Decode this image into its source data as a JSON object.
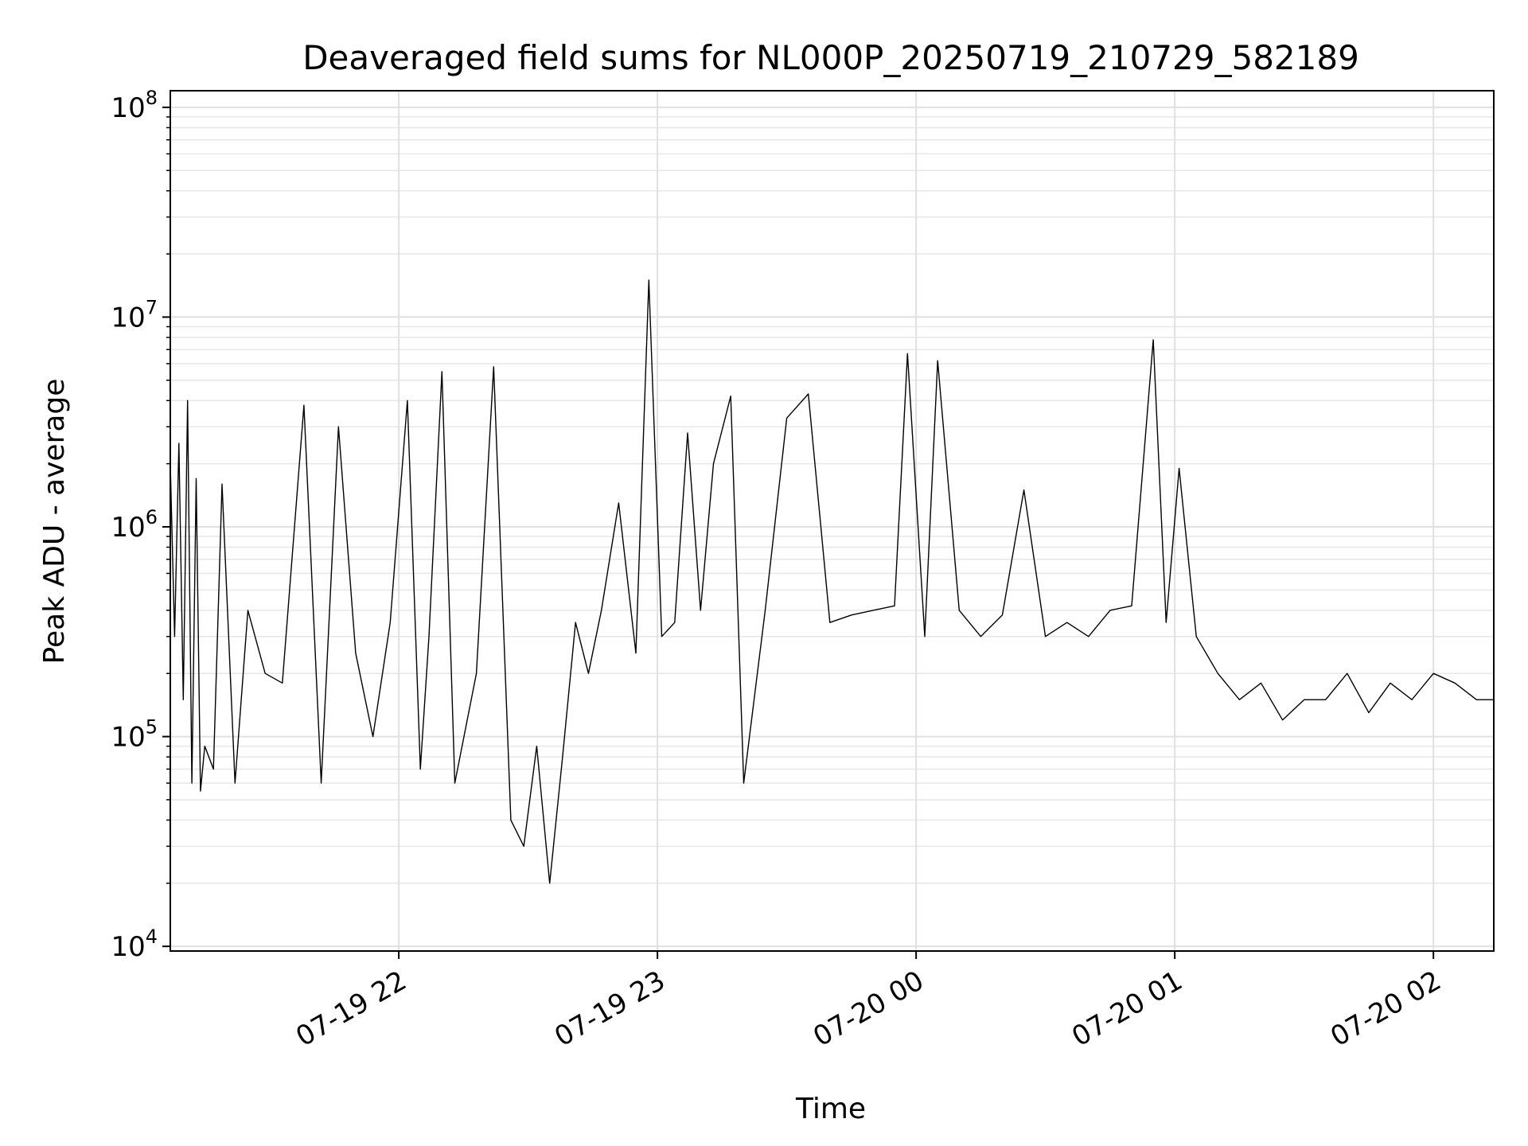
{
  "chart_data": {
    "type": "line",
    "title": "Deaveraged field sums for NL000P_20250719_210729_582189",
    "xlabel": "Time",
    "ylabel": "Peak ADU - average",
    "yscale": "log",
    "ylim": [
      9500,
      120000000
    ],
    "xlim": [
      "2025-07-19 21:07",
      "2025-07-20 02:14"
    ],
    "grid": true,
    "x_ticks": [
      {
        "at": "2025-07-19 22:00",
        "label": "07-19 22"
      },
      {
        "at": "2025-07-19 23:00",
        "label": "07-19 23"
      },
      {
        "at": "2025-07-20 00:00",
        "label": "07-20 00"
      },
      {
        "at": "2025-07-20 01:00",
        "label": "07-20 01"
      },
      {
        "at": "2025-07-20 02:00",
        "label": "07-20 02"
      }
    ],
    "y_ticks": [
      {
        "value": 10000,
        "base": "10",
        "exp": "4"
      },
      {
        "value": 100000,
        "base": "10",
        "exp": "5"
      },
      {
        "value": 1000000,
        "base": "10",
        "exp": "6"
      },
      {
        "value": 10000000,
        "base": "10",
        "exp": "7"
      },
      {
        "value": 100000000,
        "base": "10",
        "exp": "8"
      }
    ],
    "series": [
      {
        "color": "#000000",
        "x": [
          "2025-07-19 21:07",
          "2025-07-19 21:08",
          "2025-07-19 21:09",
          "2025-07-19 21:10",
          "2025-07-19 21:11",
          "2025-07-19 21:12",
          "2025-07-19 21:13",
          "2025-07-19 21:14",
          "2025-07-19 21:15",
          "2025-07-19 21:17",
          "2025-07-19 21:19",
          "2025-07-19 21:22",
          "2025-07-19 21:25",
          "2025-07-19 21:29",
          "2025-07-19 21:33",
          "2025-07-19 21:38",
          "2025-07-19 21:42",
          "2025-07-19 21:46",
          "2025-07-19 21:50",
          "2025-07-19 21:54",
          "2025-07-19 21:58",
          "2025-07-19 22:02",
          "2025-07-19 22:05",
          "2025-07-19 22:07",
          "2025-07-19 22:10",
          "2025-07-19 22:13",
          "2025-07-19 22:18",
          "2025-07-19 22:22",
          "2025-07-19 22:26",
          "2025-07-19 22:29",
          "2025-07-19 22:32",
          "2025-07-19 22:35",
          "2025-07-19 22:38",
          "2025-07-19 22:41",
          "2025-07-19 22:44",
          "2025-07-19 22:47",
          "2025-07-19 22:51",
          "2025-07-19 22:55",
          "2025-07-19 22:58",
          "2025-07-19 23:01",
          "2025-07-19 23:04",
          "2025-07-19 23:07",
          "2025-07-19 23:10",
          "2025-07-19 23:13",
          "2025-07-19 23:17",
          "2025-07-19 23:20",
          "2025-07-19 23:25",
          "2025-07-19 23:30",
          "2025-07-19 23:35",
          "2025-07-19 23:40",
          "2025-07-19 23:45",
          "2025-07-19 23:50",
          "2025-07-19 23:55",
          "2025-07-19 23:58",
          "2025-07-20 00:02",
          "2025-07-20 00:05",
          "2025-07-20 00:10",
          "2025-07-20 00:15",
          "2025-07-20 00:20",
          "2025-07-20 00:25",
          "2025-07-20 00:30",
          "2025-07-20 00:35",
          "2025-07-20 00:40",
          "2025-07-20 00:45",
          "2025-07-20 00:50",
          "2025-07-20 00:55",
          "2025-07-20 00:58",
          "2025-07-20 01:01",
          "2025-07-20 01:05",
          "2025-07-20 01:10",
          "2025-07-20 01:15",
          "2025-07-20 01:20",
          "2025-07-20 01:25",
          "2025-07-20 01:30",
          "2025-07-20 01:35",
          "2025-07-20 01:40",
          "2025-07-20 01:45",
          "2025-07-20 01:50",
          "2025-07-20 01:55",
          "2025-07-20 02:00",
          "2025-07-20 02:05",
          "2025-07-20 02:10",
          "2025-07-20 02:14"
        ],
        "y": [
          2000000,
          300000,
          2500000,
          150000,
          4000000,
          60000,
          1700000,
          55000,
          90000,
          70000,
          1600000,
          60000,
          400000,
          200000,
          180000,
          3800000,
          60000,
          3000000,
          250000,
          100000,
          350000,
          4000000,
          70000,
          300000,
          5500000,
          60000,
          200000,
          5800000,
          40000,
          30000,
          90000,
          20000,
          80000,
          350000,
          200000,
          400000,
          1300000,
          250000,
          15000000,
          300000,
          350000,
          2800000,
          400000,
          2000000,
          4200000,
          60000,
          400000,
          3300000,
          4300000,
          350000,
          380000,
          400000,
          420000,
          6700000,
          300000,
          6200000,
          400000,
          300000,
          380000,
          1500000,
          300000,
          350000,
          300000,
          400000,
          420000,
          7800000,
          350000,
          1900000,
          300000,
          200000,
          150000,
          180000,
          120000,
          150000,
          150000,
          200000,
          130000,
          180000,
          150000,
          200000,
          180000,
          150000,
          150000
        ]
      }
    ]
  }
}
